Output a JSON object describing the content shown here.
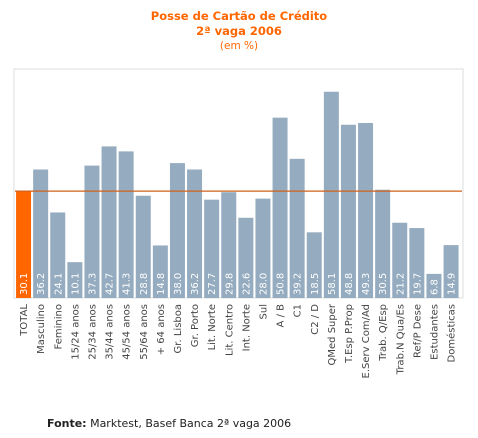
{
  "chart_data": {
    "type": "bar",
    "title": "Posse de Cartão de Crédito",
    "subtitle": "2ª vaga 2006",
    "units": "(em %)",
    "xlabel": "",
    "ylabel": "",
    "ylim": [
      0,
      62
    ],
    "reference_line": 30.1,
    "categories": [
      "TOTAL",
      "Masculino",
      "Feminino",
      "15/24 anos",
      "25/34 anos",
      "35/44 anos",
      "45/54 anos",
      "55/64 anos",
      "+ 64 anos",
      "Gr. Lisboa",
      "Gr. Porto",
      "Lit. Norte",
      "Lit. Centro",
      "Int. Norte",
      "Sul",
      "A / B",
      "C1",
      "C2 / D",
      "QMed Super",
      "T.Esp P.Prop",
      "E.Serv Com/Ad",
      "Trab. Q/Esp",
      "Trab.N Qua/Es",
      "Ref/P Dese",
      "Estudantes",
      "Domésticas"
    ],
    "values": [
      30.1,
      36.2,
      24.1,
      10.1,
      37.3,
      42.7,
      41.3,
      28.8,
      14.8,
      38.0,
      36.2,
      27.7,
      29.8,
      22.6,
      28.0,
      50.8,
      39.2,
      18.5,
      58.1,
      48.8,
      49.3,
      30.5,
      21.2,
      19.7,
      6.8,
      14.9
    ],
    "value_labels": [
      "30.1",
      "36.2",
      "24.1",
      "10.1",
      "37.3",
      "42.7",
      "41.3",
      "28.8",
      "14.8",
      "38.0",
      "36.2",
      "27.7",
      "29.8",
      "22.6",
      "28.0",
      "50.8",
      "39.2",
      "18.5",
      "58.1",
      "48.8",
      "49.3",
      "30.5",
      "21.2",
      "19.7",
      "6.8",
      "14.9"
    ],
    "highlight_index": 0,
    "colors": {
      "bar": "#95acc0",
      "highlight": "#ff6600",
      "reference_line": "#d0601a",
      "title": "#ff6600",
      "plot_border": "#dddddd",
      "label_text": "#ffffff",
      "category_text": "#444444"
    },
    "grid": false,
    "legend": "none"
  },
  "footer": {
    "source_label": "Fonte:",
    "source_text": " Marktest, Basef Banca 2ª vaga 2006"
  }
}
